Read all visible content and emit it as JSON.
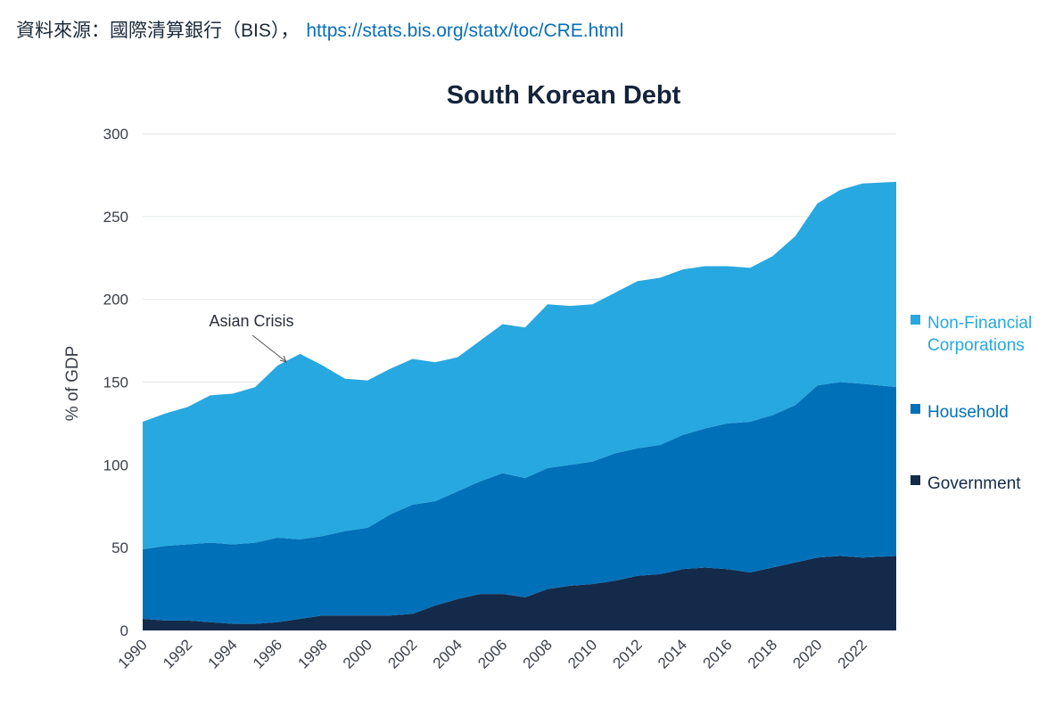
{
  "source": {
    "label": "資料來源：國際清算銀行（BIS），",
    "url_text": "https://stats.bis.org/statx/toc/CRE.html"
  },
  "chart_data": {
    "type": "area",
    "stacked": true,
    "title": "South Korean Debt",
    "ylabel": "% of GDP",
    "xlabel": "",
    "ylim": [
      0,
      300
    ],
    "yticks": [
      "0",
      "50",
      "100",
      "150",
      "200",
      "250",
      "300"
    ],
    "xticks": [
      "1990",
      "1992",
      "1994",
      "1996",
      "1998",
      "2000",
      "2002",
      "2004",
      "2006",
      "2008",
      "2010",
      "2012",
      "2014",
      "2016",
      "2018",
      "2020",
      "2022"
    ],
    "grid": true,
    "legend_position": "right",
    "annotation": {
      "text": "Asian Crisis",
      "x": 1996.5
    },
    "x": [
      1990,
      1991,
      1992,
      1993,
      1994,
      1995,
      1996,
      1997,
      1998,
      1999,
      2000,
      2001,
      2002,
      2003,
      2004,
      2005,
      2006,
      2007,
      2008,
      2009,
      2010,
      2011,
      2012,
      2013,
      2014,
      2015,
      2016,
      2017,
      2018,
      2019,
      2020,
      2021,
      2022,
      2023
    ],
    "series": [
      {
        "name": "Government",
        "color": "#142a4a",
        "values": [
          7,
          6,
          6,
          5,
          4,
          4,
          5,
          7,
          9,
          9,
          9,
          9,
          10,
          15,
          19,
          22,
          22,
          20,
          25,
          27,
          28,
          30,
          33,
          34,
          37,
          38,
          37,
          35,
          38,
          41,
          44,
          45,
          44,
          45
        ]
      },
      {
        "name": "Household",
        "color": "#0070b8",
        "values": [
          42,
          45,
          46,
          48,
          48,
          49,
          51,
          48,
          48,
          51,
          53,
          61,
          66,
          63,
          65,
          68,
          73,
          72,
          73,
          73,
          74,
          77,
          77,
          78,
          81,
          84,
          88,
          91,
          92,
          95,
          104,
          105,
          105,
          102
        ]
      },
      {
        "name": "Non-Financial Corporations",
        "color": "#27a8e0",
        "values": [
          77,
          80,
          83,
          89,
          91,
          94,
          104,
          112,
          103,
          92,
          89,
          88,
          88,
          84,
          81,
          85,
          90,
          91,
          99,
          96,
          95,
          97,
          101,
          101,
          100,
          98,
          95,
          93,
          96,
          102,
          110,
          116,
          121,
          124
        ]
      }
    ]
  }
}
